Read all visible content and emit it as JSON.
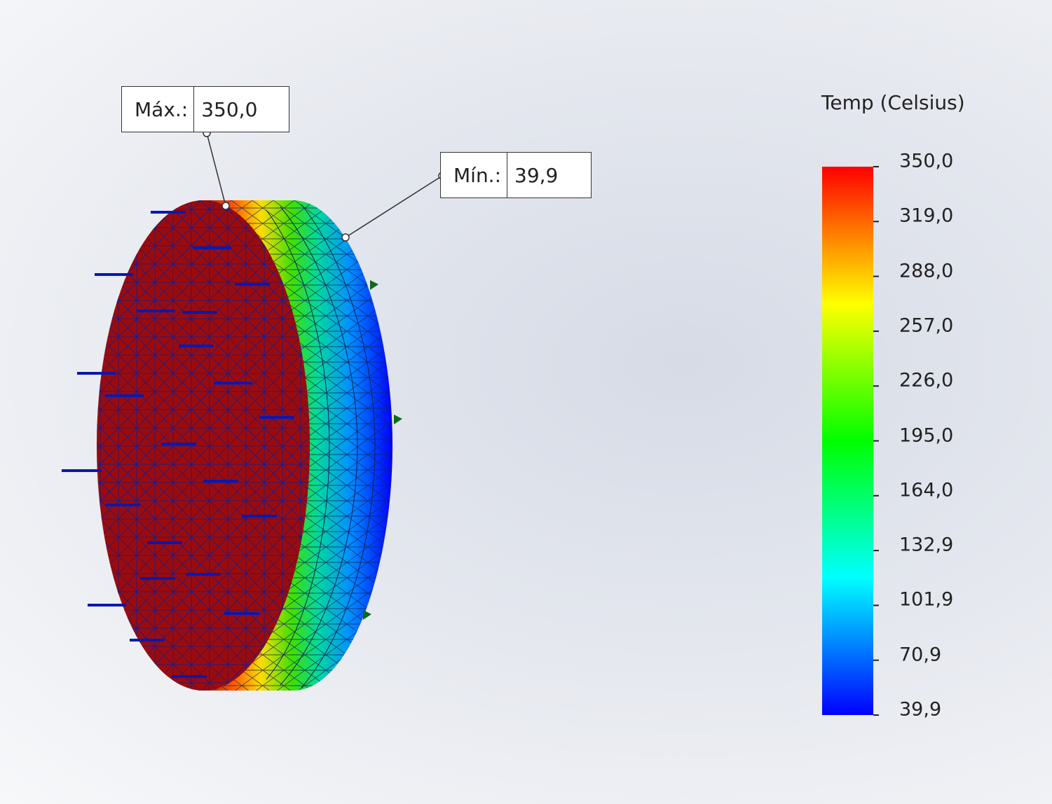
{
  "result_plot": {
    "max_label": {
      "key": "Máx.:",
      "value": "350,0"
    },
    "min_label": {
      "key": "Mín.:",
      "value": "39,9"
    }
  },
  "legend": {
    "title": "Temp (Celsius)",
    "colors": [
      "#ff0000",
      "#ff8000",
      "#ffff00",
      "#80ff00",
      "#00ff00",
      "#00ff80",
      "#00ffff",
      "#0080ff",
      "#0000ff"
    ],
    "ticks": [
      "350,0",
      "319,0",
      "288,0",
      "257,0",
      "226,0",
      "195,0",
      "164,0",
      "132,9",
      "101,9",
      "70,9",
      "39,9"
    ]
  }
}
